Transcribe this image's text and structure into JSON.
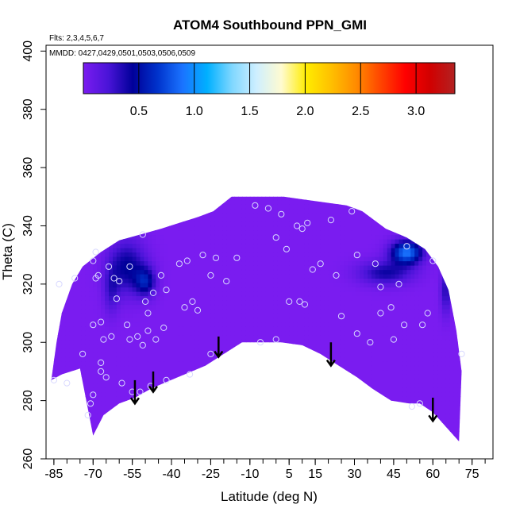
{
  "chart_data": {
    "type": "heatmap",
    "title": "ATOM4 Southbound PPN_GMI",
    "flights_label": "Flts: 2,3,4,5,6,7",
    "dates_label": "MMDD: 0427,0429,0501,0503,0506,0509",
    "xlabel": "Latitude (deg N)",
    "ylabel": "Theta (C)",
    "xlim": [
      -88,
      83
    ],
    "ylim": [
      260,
      402
    ],
    "x_tick_labels": [
      "-85",
      "-70",
      "-55",
      "-40",
      "-25",
      "-10",
      "5",
      "15",
      "30",
      "45",
      "60",
      "75"
    ],
    "x_tick_values": [
      -85,
      -70,
      -55,
      -40,
      -25,
      -10,
      5,
      15,
      30,
      45,
      60,
      75
    ],
    "x_minor_ticks": [
      -85,
      -80,
      -75,
      -70,
      -65,
      -60,
      -55,
      -50,
      -45,
      -40,
      -35,
      -30,
      -25,
      -20,
      -15,
      -10,
      -5,
      0,
      5,
      10,
      15,
      20,
      25,
      30,
      35,
      40,
      45,
      50,
      55,
      60,
      65,
      70,
      75,
      80
    ],
    "y_tick_labels": [
      "260",
      "280",
      "300",
      "320",
      "340",
      "360",
      "380",
      "400"
    ],
    "y_tick_values": [
      260,
      280,
      300,
      320,
      340,
      360,
      380,
      400
    ],
    "colorbar": {
      "min": 0.0,
      "max": 3.35,
      "tick_labels": [
        "0.5",
        "1.0",
        "1.5",
        "2.0",
        "2.5",
        "3.0"
      ],
      "tick_values": [
        0.5,
        1.0,
        1.5,
        2.0,
        2.5,
        3.0
      ],
      "colors": [
        "#7a1cf0",
        "#4a14d8",
        "#000099",
        "#0033cc",
        "#1a73ff",
        "#00b0ff",
        "#7fd7ff",
        "#cfefff",
        "#fffbd0",
        "#ffec00",
        "#ffc000",
        "#ff8c00",
        "#ff4500",
        "#ff0000",
        "#d10000",
        "#b22222"
      ]
    },
    "domain": {
      "bottom_boundary": [
        [
          -86,
          287
        ],
        [
          -82,
          289
        ],
        [
          -75,
          291
        ],
        [
          -70,
          268
        ],
        [
          -66,
          275
        ],
        [
          -60,
          279
        ],
        [
          -54,
          281
        ],
        [
          -48,
          284
        ],
        [
          -43,
          286
        ],
        [
          -35,
          289
        ],
        [
          -27,
          292
        ],
        [
          -20,
          296
        ],
        [
          -13,
          300
        ],
        [
          -5,
          300
        ],
        [
          2,
          300
        ],
        [
          10,
          299
        ],
        [
          17,
          296
        ],
        [
          24,
          292
        ],
        [
          31,
          288
        ],
        [
          37,
          284
        ],
        [
          44,
          280
        ],
        [
          51,
          279
        ],
        [
          55,
          279
        ],
        [
          60,
          276
        ],
        [
          65,
          271
        ],
        [
          70,
          266
        ]
      ],
      "top_boundary": [
        [
          70,
          266
        ],
        [
          71,
          290
        ],
        [
          69,
          304
        ],
        [
          66,
          318
        ],
        [
          62,
          326
        ],
        [
          57,
          332
        ],
        [
          50,
          336
        ],
        [
          42,
          339
        ],
        [
          33,
          345
        ],
        [
          27,
          347
        ],
        [
          19,
          348
        ],
        [
          11,
          349
        ],
        [
          3,
          350
        ],
        [
          -7,
          350
        ],
        [
          -17,
          350
        ],
        [
          -24,
          345
        ],
        [
          -30,
          343
        ],
        [
          -37,
          341
        ],
        [
          -44,
          339
        ],
        [
          -52,
          337
        ],
        [
          -60,
          335
        ],
        [
          -67,
          331
        ],
        [
          -74,
          326
        ],
        [
          -78,
          320
        ],
        [
          -82,
          310
        ],
        [
          -84,
          300
        ],
        [
          -86,
          287
        ]
      ],
      "background_value": 0.0
    },
    "features": [
      {
        "name": "southern high blob",
        "lat": -57,
        "theta": 326,
        "dlat": 7,
        "dtheta": 9,
        "value": 0.45
      },
      {
        "name": "southern high lobe",
        "lat": -50,
        "theta": 321,
        "dlat": 4,
        "dtheta": 5,
        "value": 0.5
      },
      {
        "name": "southern mid filament",
        "lat": -63,
        "theta": 318,
        "dlat": 3,
        "dtheta": 8,
        "value": 0.25
      },
      {
        "name": "northern high core",
        "lat": 50,
        "theta": 331,
        "dlat": 6,
        "dtheta": 4,
        "value": 0.9
      },
      {
        "name": "northern high band",
        "lat": 42,
        "theta": 324,
        "dlat": 10,
        "dtheta": 4,
        "value": 0.4
      },
      {
        "name": "northern edge strip",
        "lat": 65,
        "theta": 318,
        "dlat": 2,
        "dtheta": 8,
        "value": 0.35
      }
    ],
    "observations": [
      [
        -85,
        287
      ],
      [
        -83,
        320
      ],
      [
        -80,
        286
      ],
      [
        -77,
        322
      ],
      [
        -74,
        296
      ],
      [
        -72,
        275
      ],
      [
        -71,
        279
      ],
      [
        -70,
        306
      ],
      [
        -70,
        282
      ],
      [
        -70,
        328
      ],
      [
        -69,
        331
      ],
      [
        -69,
        322
      ],
      [
        -68,
        323
      ],
      [
        -67,
        307
      ],
      [
        -67,
        293
      ],
      [
        -67,
        290
      ],
      [
        -66,
        301
      ],
      [
        -65,
        288
      ],
      [
        -64,
        326
      ],
      [
        -63,
        302
      ],
      [
        -62,
        322
      ],
      [
        -61,
        315
      ],
      [
        -60,
        321
      ],
      [
        -59,
        286
      ],
      [
        -57,
        306
      ],
      [
        -56,
        326
      ],
      [
        -56,
        301
      ],
      [
        -55,
        283
      ],
      [
        -53,
        302
      ],
      [
        -52,
        283
      ],
      [
        -51,
        337
      ],
      [
        -51,
        299
      ],
      [
        -50,
        314
      ],
      [
        -49,
        310
      ],
      [
        -49,
        304
      ],
      [
        -48,
        285
      ],
      [
        -47,
        317
      ],
      [
        -46,
        301
      ],
      [
        -44,
        323
      ],
      [
        -43,
        305
      ],
      [
        -42,
        287
      ],
      [
        -42,
        318
      ],
      [
        -37,
        327
      ],
      [
        -35,
        312
      ],
      [
        -34,
        328
      ],
      [
        -33,
        289
      ],
      [
        -32,
        314
      ],
      [
        -30,
        311
      ],
      [
        -28,
        330
      ],
      [
        -25,
        296
      ],
      [
        -25,
        323
      ],
      [
        -23,
        329
      ],
      [
        -19,
        321
      ],
      [
        -15,
        329
      ],
      [
        -8,
        347
      ],
      [
        -6,
        300
      ],
      [
        -3,
        346
      ],
      [
        0,
        336
      ],
      [
        0,
        301
      ],
      [
        2,
        344
      ],
      [
        4,
        332
      ],
      [
        5,
        314
      ],
      [
        8,
        340
      ],
      [
        9,
        314
      ],
      [
        10,
        339
      ],
      [
        11,
        313
      ],
      [
        12,
        341
      ],
      [
        14,
        325
      ],
      [
        17,
        327
      ],
      [
        21,
        342
      ],
      [
        23,
        323
      ],
      [
        25,
        309
      ],
      [
        29,
        345
      ],
      [
        31,
        303
      ],
      [
        31,
        330
      ],
      [
        36,
        300
      ],
      [
        38,
        327
      ],
      [
        40,
        319
      ],
      [
        40,
        310
      ],
      [
        44,
        312
      ],
      [
        45,
        301
      ],
      [
        47,
        320
      ],
      [
        49,
        306
      ],
      [
        50,
        333
      ],
      [
        52,
        278
      ],
      [
        55,
        279
      ],
      [
        56,
        306
      ],
      [
        58,
        310
      ],
      [
        60,
        328
      ],
      [
        71,
        296
      ]
    ],
    "arrows": [
      {
        "lat": -54,
        "theta_start": 287,
        "theta_end": 279
      },
      {
        "lat": -47,
        "theta_start": 290,
        "theta_end": 283
      },
      {
        "lat": -22,
        "theta_start": 302,
        "theta_end": 295
      },
      {
        "lat": 21,
        "theta_start": 300,
        "theta_end": 292
      },
      {
        "lat": 60,
        "theta_start": 281,
        "theta_end": 273
      }
    ]
  }
}
